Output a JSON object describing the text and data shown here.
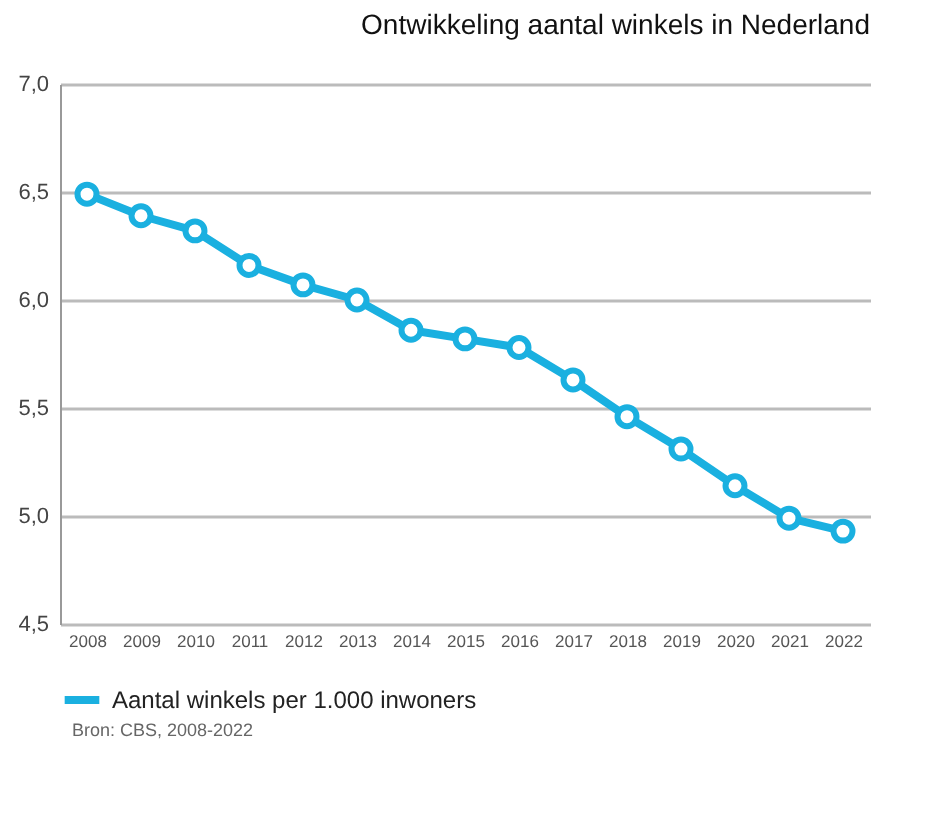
{
  "chart_data": {
    "type": "line",
    "title": "Ontwikkeling aantal winkels in Nederland",
    "categories": [
      "2008",
      "2009",
      "2010",
      "2011",
      "2012",
      "2013",
      "2014",
      "2015",
      "2016",
      "2017",
      "2018",
      "2019",
      "2020",
      "2021",
      "2022"
    ],
    "series": [
      {
        "name": "Aantal winkels per 1.000 inwoners",
        "color": "#1ab0e0",
        "values": [
          6.49,
          6.39,
          6.32,
          6.16,
          6.07,
          6.0,
          5.86,
          5.82,
          5.78,
          5.63,
          5.46,
          5.31,
          5.14,
          4.99,
          4.93
        ]
      }
    ],
    "ylim": [
      4.5,
      7.0
    ],
    "yticks": [
      {
        "value": 4.5,
        "label": "4,5"
      },
      {
        "value": 5.0,
        "label": "5,0"
      },
      {
        "value": 5.5,
        "label": "5,5"
      },
      {
        "value": 6.0,
        "label": "6,0"
      },
      {
        "value": 6.5,
        "label": "6,5"
      },
      {
        "value": 7.0,
        "label": "7,0"
      }
    ],
    "grid": "y",
    "legend": "bottom",
    "marker": "circle",
    "line_style": "solid",
    "annotations": [
      "Bron: CBS, 2008-2022"
    ]
  }
}
